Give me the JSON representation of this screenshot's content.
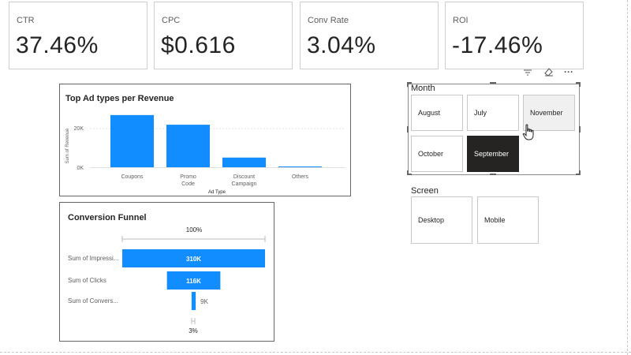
{
  "kpis": [
    {
      "label": "CTR",
      "value": "37.46%"
    },
    {
      "label": "CPC",
      "value": "$0.616"
    },
    {
      "label": "Conv Rate",
      "value": "3.04%"
    },
    {
      "label": "ROI",
      "value": "-17.46%"
    }
  ],
  "ad_chart": {
    "title": "Top Ad types per Revenue",
    "ylabel": "Sum of Revenue",
    "xlabel": "Ad Type",
    "yticks": [
      "20K",
      "0K"
    ]
  },
  "funnel": {
    "title": "Conversion Funnel",
    "top_pct": "100%",
    "bottom_pct": "3%"
  },
  "chart_data": [
    {
      "type": "bar",
      "title": "Top Ad types per Revenue",
      "xlabel": "Ad Type",
      "ylabel": "Sum of Revenue",
      "categories": [
        "Coupons",
        "Promo Code",
        "Discount Campaign",
        "Others"
      ],
      "values": [
        27000,
        22000,
        5000,
        300
      ],
      "ylim": [
        0,
        32000
      ],
      "grid": true,
      "color": "#118DFF"
    },
    {
      "type": "bar",
      "title": "Conversion Funnel",
      "categories": [
        "Sum of Impressi...",
        "Sum of Clicks",
        "Sum of Convers..."
      ],
      "values": [
        310000,
        116000,
        9000
      ],
      "data_labels": [
        "310K",
        "116K",
        "9K"
      ],
      "color": "#118DFF"
    }
  ],
  "month_slicer": {
    "title": "Month",
    "options": [
      "August",
      "July",
      "November",
      "October",
      "September"
    ],
    "selected": "September",
    "hovered": "November"
  },
  "screen_slicer": {
    "title": "Screen",
    "options": [
      "Desktop",
      "Mobile"
    ]
  },
  "visual_header": {
    "icons": [
      "filter-icon",
      "eraser-icon",
      "more-options-icon"
    ],
    "more": "···"
  }
}
